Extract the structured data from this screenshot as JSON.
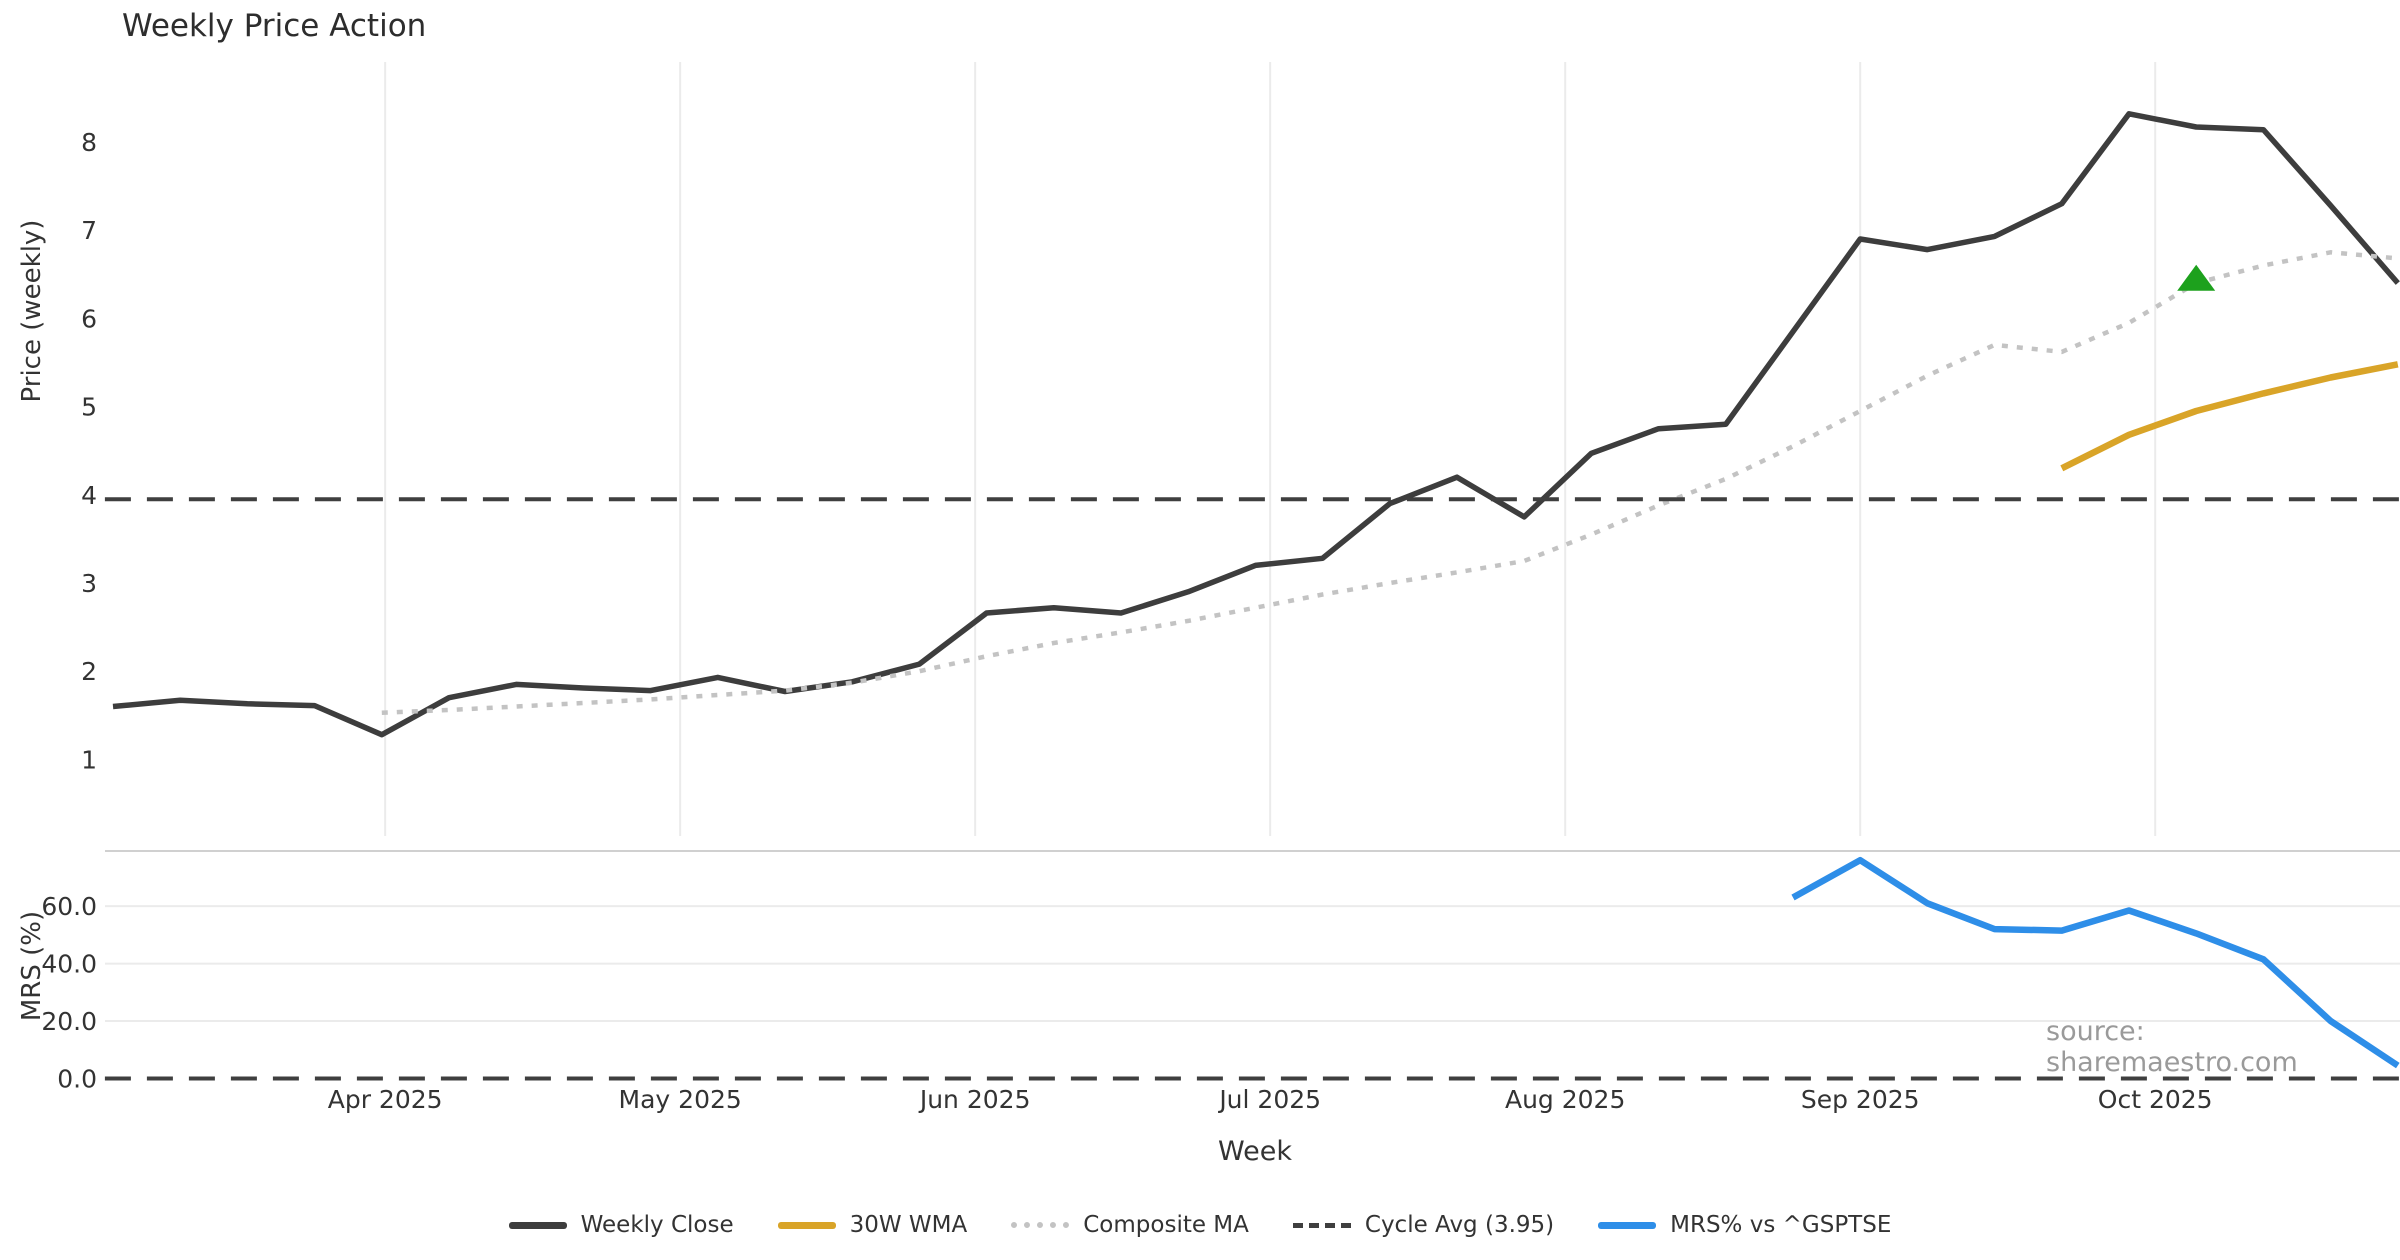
{
  "page": {
    "title": "Weekly Price Action",
    "source_note": "source: sharemaestro.com"
  },
  "axes": {
    "price": {
      "label": "Price (weekly)",
      "ticks": [
        1,
        2,
        3,
        4,
        5,
        6,
        7,
        8
      ]
    },
    "mrs": {
      "label": "MRS (%)",
      "ticks": [
        {
          "v": 0,
          "label": "0.0"
        },
        {
          "v": 20,
          "label": "20.0"
        },
        {
          "v": 40,
          "label": "40.0"
        },
        {
          "v": 60,
          "label": "60.0"
        }
      ]
    },
    "x": {
      "label": "Week",
      "ticks": [
        {
          "label": "Apr 2025",
          "x": 4.05
        },
        {
          "label": "May 2025",
          "x": 8.44
        },
        {
          "label": "Jun 2025",
          "x": 12.83
        },
        {
          "label": "Jul 2025",
          "x": 17.22
        },
        {
          "label": "Aug 2025",
          "x": 21.61
        },
        {
          "label": "Sep 2025",
          "x": 26.0
        },
        {
          "label": "Oct 2025",
          "x": 30.39
        }
      ]
    }
  },
  "legend": {
    "items": [
      {
        "label": "Weekly Close",
        "color": "#3d3d3d",
        "style": "solid"
      },
      {
        "label": "30W WMA",
        "color": "#d9a428",
        "style": "solid"
      },
      {
        "label": "Composite MA",
        "color": "#c3c3c3",
        "style": "dotted"
      },
      {
        "label": "Cycle Avg (3.95)",
        "color": "#3f3f3f",
        "style": "dashed"
      },
      {
        "label": "MRS% vs ^GSPTSE",
        "color": "#2e8ee8",
        "style": "solid"
      }
    ]
  },
  "chart_data": {
    "type": "line",
    "title": "Weekly Price Action",
    "x_unit": "week index (weekly data, late Mar 2025 through late Oct 2025)",
    "panels": [
      {
        "id": "price",
        "ylabel": "Price (weekly)",
        "ylim": [
          0.1,
          8.9
        ],
        "yticks": [
          1,
          2,
          3,
          4,
          5,
          6,
          7,
          8
        ],
        "grid": "vertical-months"
      },
      {
        "id": "mrs",
        "ylabel": "MRS (%)",
        "ylim": [
          -3,
          80
        ],
        "yticks": [
          0,
          20,
          40,
          60
        ],
        "grid": "horizontal"
      }
    ],
    "cycle_avg": 3.95,
    "series": [
      {
        "name": "Weekly Close",
        "panel": "price",
        "color": "#3d3d3d",
        "style": "solid",
        "width": 5.5,
        "x": [
          0,
          1,
          2,
          3,
          4,
          5,
          6,
          7,
          8,
          9,
          10,
          11,
          12,
          13,
          14,
          15,
          16,
          17,
          18,
          19,
          20,
          21,
          22,
          23,
          24,
          25,
          26,
          27,
          28,
          29,
          30,
          31,
          32,
          33,
          34
        ],
        "y": [
          1.6,
          1.67,
          1.63,
          1.61,
          1.28,
          1.7,
          1.85,
          1.81,
          1.78,
          1.93,
          1.77,
          1.88,
          2.08,
          2.66,
          2.72,
          2.66,
          2.9,
          3.2,
          3.28,
          3.9,
          4.2,
          3.75,
          4.47,
          4.75,
          4.8,
          5.85,
          6.9,
          6.78,
          6.93,
          7.3,
          8.32,
          8.17,
          8.14,
          7.28,
          6.4
        ]
      },
      {
        "name": "Composite MA",
        "panel": "price",
        "color": "#c3c3c3",
        "style": "dotted",
        "width": 4.5,
        "x": [
          4,
          5,
          6,
          7,
          8,
          9,
          10,
          11,
          12,
          13,
          14,
          15,
          16,
          17,
          18,
          19,
          20,
          21,
          22,
          23,
          24,
          25,
          26,
          27,
          28,
          29,
          30,
          31,
          32,
          33,
          34
        ],
        "y": [
          1.53,
          1.56,
          1.6,
          1.64,
          1.68,
          1.73,
          1.78,
          1.87,
          2.0,
          2.17,
          2.32,
          2.44,
          2.57,
          2.72,
          2.87,
          3.0,
          3.12,
          3.25,
          3.55,
          3.88,
          4.18,
          4.55,
          4.95,
          5.35,
          5.7,
          5.62,
          5.95,
          6.4,
          6.6,
          6.75,
          6.68
        ]
      },
      {
        "name": "30W WMA",
        "panel": "price",
        "color": "#d9a428",
        "style": "solid",
        "width": 6.5,
        "x": [
          29,
          30,
          31,
          32,
          33,
          34
        ],
        "y": [
          4.3,
          4.68,
          4.95,
          5.15,
          5.33,
          5.48
        ]
      },
      {
        "name": "Cycle Avg (3.95)",
        "panel": "price",
        "color": "#3f3f3f",
        "style": "dashed",
        "width": 4,
        "x": [
          -0.12,
          34.06
        ],
        "y": [
          3.95,
          3.95
        ]
      },
      {
        "name": "MRS Zero Line",
        "panel": "mrs",
        "color": "#3f3f3f",
        "style": "dashed",
        "width": 4,
        "x": [
          -0.12,
          34.06
        ],
        "y": [
          0,
          0
        ]
      },
      {
        "name": "MRS% vs ^GSPTSE",
        "panel": "mrs",
        "color": "#2e8ee8",
        "style": "solid",
        "width": 6.5,
        "x": [
          25,
          26,
          27,
          28,
          29,
          30,
          31,
          32,
          33,
          34
        ],
        "y": [
          63,
          76,
          61,
          52,
          51.5,
          58.5,
          50.5,
          41.5,
          20,
          4.5
        ]
      }
    ],
    "markers": [
      {
        "shape": "triangle-up",
        "color": "#1da11d",
        "panel": "price",
        "x": 31,
        "y": 6.45
      }
    ]
  }
}
